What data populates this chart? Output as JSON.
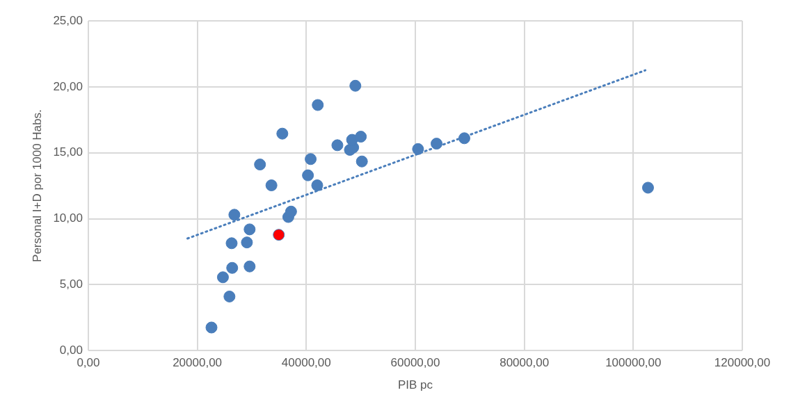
{
  "chart_data": {
    "type": "scatter",
    "xlabel": "PIB pc",
    "ylabel": "Personal I+D por 1000 Habs.",
    "xlim": [
      0,
      120000
    ],
    "ylim": [
      0,
      25
    ],
    "xticks": [
      {
        "value": 0,
        "label": "0,00"
      },
      {
        "value": 20000,
        "label": "20000,00"
      },
      {
        "value": 40000,
        "label": "40000,00"
      },
      {
        "value": 60000,
        "label": "60000,00"
      },
      {
        "value": 80000,
        "label": "80000,00"
      },
      {
        "value": 100000,
        "label": "100000,00"
      },
      {
        "value": 120000,
        "label": "120000,00"
      }
    ],
    "yticks": [
      {
        "value": 0,
        "label": "0,00"
      },
      {
        "value": 5,
        "label": "5,00"
      },
      {
        "value": 10,
        "label": "10,00"
      },
      {
        "value": 15,
        "label": "15,00"
      },
      {
        "value": 20,
        "label": "20,00"
      },
      {
        "value": 25,
        "label": "25,00"
      }
    ],
    "grid": true,
    "marker": "circle",
    "series": [
      {
        "color": "#4a7ebb",
        "x": [
          22600,
          25900,
          24700,
          26400,
          29600,
          26300,
          29100,
          29600,
          26800,
          36700,
          37200,
          33600,
          31500,
          35600,
          40300,
          40800,
          42000,
          42100,
          45700,
          49000,
          48000,
          48600,
          48400,
          50000,
          50200,
          60500,
          63900,
          69000,
          102700
        ],
        "values": [
          1.75,
          4.1,
          5.56,
          6.27,
          6.38,
          8.14,
          8.2,
          9.19,
          10.3,
          10.13,
          10.54,
          12.53,
          14.11,
          16.45,
          13.29,
          14.52,
          12.53,
          18.62,
          15.57,
          20.08,
          15.22,
          15.4,
          15.98,
          16.22,
          14.34,
          15.28,
          15.69,
          16.1,
          12.35
        ]
      },
      {
        "color": "#ff0000",
        "x": [
          34950
        ],
        "values": [
          8.78
        ]
      },
      {
        "type": "line",
        "color": "#4a7ebb",
        "line_style": "dotted",
        "marker": "none",
        "x": [
          18200,
          102200
        ],
        "values": [
          8.5,
          21.25
        ]
      }
    ]
  }
}
